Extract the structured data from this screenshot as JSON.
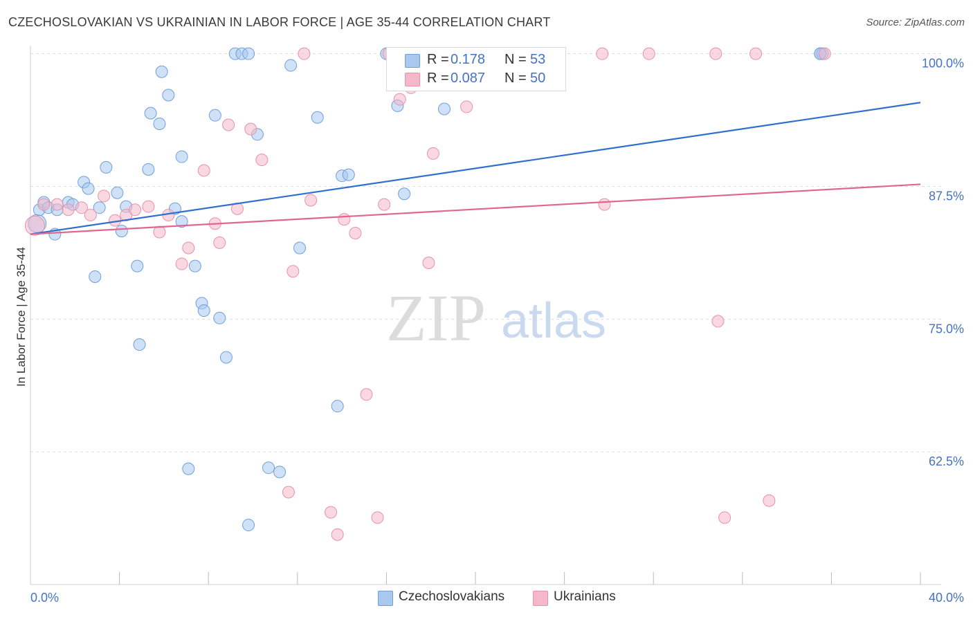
{
  "title": "CZECHOSLOVAKIAN VS UKRAINIAN IN LABOR FORCE | AGE 35-44 CORRELATION CHART",
  "source": "Source: ZipAtlas.com",
  "watermark": {
    "zip": "ZIP",
    "atlas": "atlas"
  },
  "legend": {
    "rows": [
      {
        "r_label": "R =",
        "r_value": "0.178",
        "n_label": "N =",
        "n_value": "53",
        "color": "#a8c8f0"
      },
      {
        "r_label": "R =",
        "r_value": "0.087",
        "n_label": "N =",
        "n_value": "50",
        "color": "#f5b8cb"
      }
    ]
  },
  "bottom_legend": [
    {
      "label": "Czechoslovakians",
      "color": "#a8c8f0"
    },
    {
      "label": "Ukrainians",
      "color": "#f5b8cb"
    }
  ],
  "chart_data": {
    "type": "scatter",
    "ylabel": "In Labor Force | Age 35-44",
    "xlim": [
      0,
      40
    ],
    "ylim": [
      50,
      100.5
    ],
    "x_tick_labels": [
      {
        "value": 0,
        "label": "0.0%"
      },
      {
        "value": 40,
        "label": "40.0%"
      }
    ],
    "y_tick_labels": [
      {
        "value": 100,
        "label": "100.0%"
      },
      {
        "value": 87.5,
        "label": "87.5%"
      },
      {
        "value": 75,
        "label": "75.0%"
      },
      {
        "value": 62.5,
        "label": "62.5%"
      }
    ],
    "x_minor_ticks": [
      4,
      8,
      12,
      16,
      20,
      24,
      28,
      32,
      36,
      40
    ],
    "series": [
      {
        "name": "Czechoslovakians",
        "color": "#a8c8f0",
        "stroke": "#6f9fd8",
        "trend": {
          "x": [
            0,
            40
          ],
          "y": [
            83.0,
            95.4
          ],
          "color": "#2f6fce"
        },
        "points": [
          [
            0.3,
            84.0
          ],
          [
            0.4,
            85.3
          ],
          [
            0.6,
            86.0
          ],
          [
            0.8,
            85.5
          ],
          [
            1.1,
            83.0
          ],
          [
            1.2,
            85.3
          ],
          [
            1.7,
            86.0
          ],
          [
            1.9,
            85.8
          ],
          [
            2.4,
            87.9
          ],
          [
            2.6,
            87.3
          ],
          [
            2.9,
            79.0
          ],
          [
            3.1,
            85.5
          ],
          [
            3.4,
            89.3
          ],
          [
            3.9,
            86.9
          ],
          [
            4.1,
            83.3
          ],
          [
            4.3,
            85.6
          ],
          [
            4.8,
            80.0
          ],
          [
            4.9,
            72.6
          ],
          [
            5.3,
            89.1
          ],
          [
            5.4,
            94.4
          ],
          [
            5.8,
            93.4
          ],
          [
            5.9,
            98.3
          ],
          [
            6.2,
            96.1
          ],
          [
            6.5,
            85.4
          ],
          [
            6.8,
            84.2
          ],
          [
            6.8,
            90.3
          ],
          [
            7.1,
            60.9
          ],
          [
            7.4,
            80.0
          ],
          [
            7.7,
            76.5
          ],
          [
            7.8,
            75.8
          ],
          [
            8.3,
            94.2
          ],
          [
            8.5,
            75.1
          ],
          [
            8.8,
            71.4
          ],
          [
            9.2,
            100.0
          ],
          [
            9.5,
            100.0
          ],
          [
            9.8,
            100.0
          ],
          [
            9.8,
            55.6
          ],
          [
            10.2,
            92.4
          ],
          [
            10.7,
            61.0
          ],
          [
            11.2,
            60.6
          ],
          [
            11.7,
            98.9
          ],
          [
            12.1,
            81.7
          ],
          [
            12.9,
            94.0
          ],
          [
            13.8,
            66.8
          ],
          [
            14.0,
            88.5
          ],
          [
            14.3,
            88.6
          ],
          [
            16.0,
            100.0
          ],
          [
            16.5,
            95.1
          ],
          [
            16.8,
            86.8
          ],
          [
            18.6,
            94.8
          ],
          [
            35.5,
            100.0
          ],
          [
            35.6,
            100.0
          ],
          [
            35.5,
            100.0
          ]
        ]
      },
      {
        "name": "Ukrainians",
        "color": "#f5b8cb",
        "stroke": "#e990ab",
        "trend": {
          "x": [
            0,
            40
          ],
          "y": [
            83.0,
            87.7
          ],
          "color": "#e0668f"
        },
        "points": [
          [
            0.2,
            83.8
          ],
          [
            0.6,
            85.8
          ],
          [
            1.2,
            85.8
          ],
          [
            1.7,
            85.3
          ],
          [
            2.3,
            85.5
          ],
          [
            2.7,
            84.8
          ],
          [
            3.3,
            86.6
          ],
          [
            3.8,
            84.3
          ],
          [
            4.3,
            84.8
          ],
          [
            4.7,
            85.3
          ],
          [
            5.3,
            85.6
          ],
          [
            5.8,
            83.2
          ],
          [
            6.2,
            84.8
          ],
          [
            6.8,
            80.2
          ],
          [
            7.1,
            81.7
          ],
          [
            7.8,
            89.0
          ],
          [
            8.3,
            84.0
          ],
          [
            8.5,
            82.2
          ],
          [
            8.9,
            93.3
          ],
          [
            9.3,
            85.4
          ],
          [
            9.9,
            92.9
          ],
          [
            10.4,
            90.0
          ],
          [
            11.6,
            58.7
          ],
          [
            11.8,
            79.5
          ],
          [
            12.3,
            100.0
          ],
          [
            12.6,
            86.2
          ],
          [
            13.5,
            56.8
          ],
          [
            13.8,
            54.7
          ],
          [
            14.1,
            84.4
          ],
          [
            14.6,
            83.1
          ],
          [
            15.1,
            67.9
          ],
          [
            15.6,
            56.3
          ],
          [
            15.9,
            85.8
          ],
          [
            16.1,
            100.0
          ],
          [
            16.6,
            95.7
          ],
          [
            17.1,
            96.8
          ],
          [
            17.9,
            80.3
          ],
          [
            18.1,
            90.6
          ],
          [
            19.6,
            95.0
          ],
          [
            20.6,
            100.0
          ],
          [
            23.7,
            100.0
          ],
          [
            25.7,
            100.0
          ],
          [
            25.8,
            85.8
          ],
          [
            27.8,
            100.0
          ],
          [
            30.8,
            100.0
          ],
          [
            30.9,
            74.8
          ],
          [
            31.2,
            56.3
          ],
          [
            32.6,
            100.0
          ],
          [
            33.2,
            57.9
          ],
          [
            35.7,
            100.0
          ]
        ]
      }
    ]
  }
}
